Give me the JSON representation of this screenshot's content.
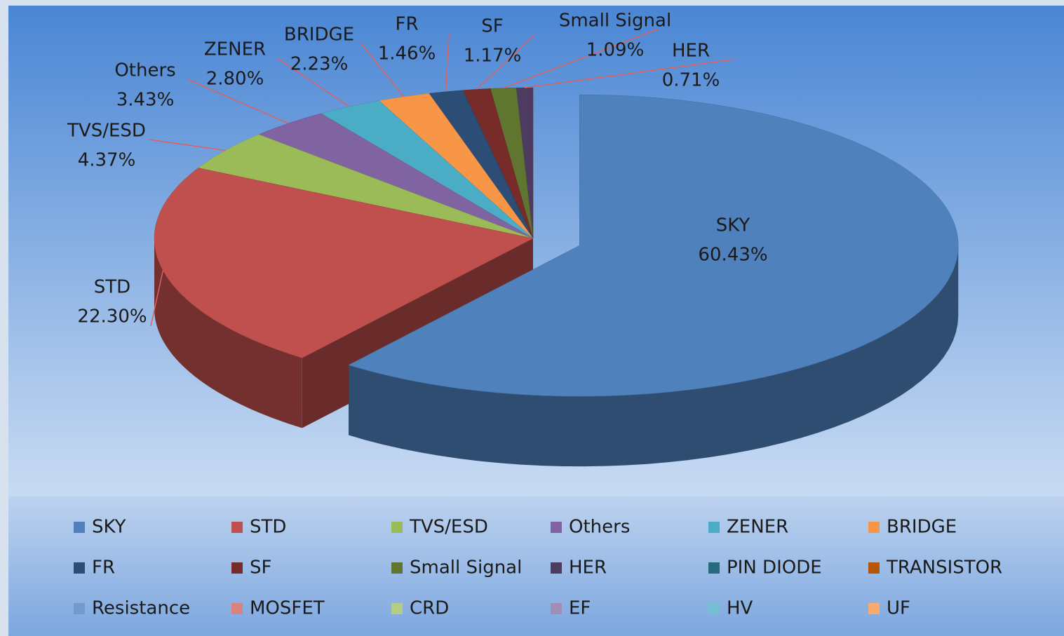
{
  "chart_data": {
    "type": "pie3d",
    "categories": [
      "SKY",
      "STD",
      "TVS/ESD",
      "Others",
      "ZENER",
      "BRIDGE",
      "FR",
      "SF",
      "Small Signal",
      "HER",
      "PIN DIODE",
      "TRANSISTOR",
      "Resistance",
      "MOSFET",
      "CRD",
      "EF",
      "HV",
      "UF"
    ],
    "values": [
      60.43,
      22.3,
      4.37,
      3.43,
      2.8,
      2.23,
      1.46,
      1.17,
      1.09,
      0.71,
      0,
      0,
      0,
      0,
      0,
      0,
      0,
      0
    ],
    "value_labels": [
      "60.43%",
      "22.30%",
      "4.37%",
      "3.43%",
      "2.80%",
      "2.23%",
      "1.46%",
      "1.17%",
      "1.09%",
      "0.71%",
      null,
      null,
      null,
      null,
      null,
      null,
      null,
      null
    ],
    "colors": [
      "#4f81bd",
      "#c0504d",
      "#9bbb59",
      "#8064a2",
      "#4bacc6",
      "#f79646",
      "#2c4d75",
      "#772c2a",
      "#5f7530",
      "#4d3b62",
      "#276a7c",
      "#b65708",
      "#729aca",
      "#d9827f",
      "#b4cc84",
      "#a08eb8",
      "#76bed1",
      "#f9ab6c"
    ],
    "legend": "bottom"
  }
}
